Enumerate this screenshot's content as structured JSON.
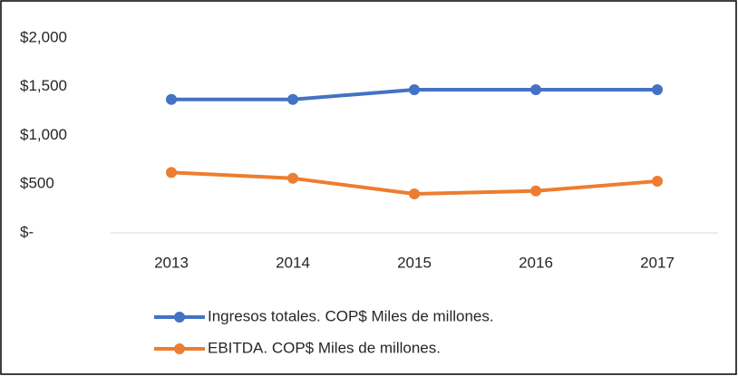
{
  "chart_data": {
    "type": "line",
    "categories": [
      "2013",
      "2014",
      "2015",
      "2016",
      "2017"
    ],
    "series": [
      {
        "name": "Ingresos totales. COP$ Miles de millones.",
        "color": "#4472c4",
        "values": [
          1370,
          1370,
          1470,
          1470,
          1470
        ]
      },
      {
        "name": "EBITDA. COP$ Miles de millones.",
        "color": "#ed7d31",
        "values": [
          620,
          560,
          400,
          430,
          530
        ]
      }
    ],
    "ylim": [
      0,
      2000
    ],
    "yticks": [
      {
        "value": 0,
        "label": "$-"
      },
      {
        "value": 500,
        "label": "$500"
      },
      {
        "value": 1000,
        "label": "$1,000"
      },
      {
        "value": 1500,
        "label": "$1,500"
      },
      {
        "value": 2000,
        "label": "$2,000"
      }
    ],
    "grid": false,
    "legend": "bottom"
  }
}
